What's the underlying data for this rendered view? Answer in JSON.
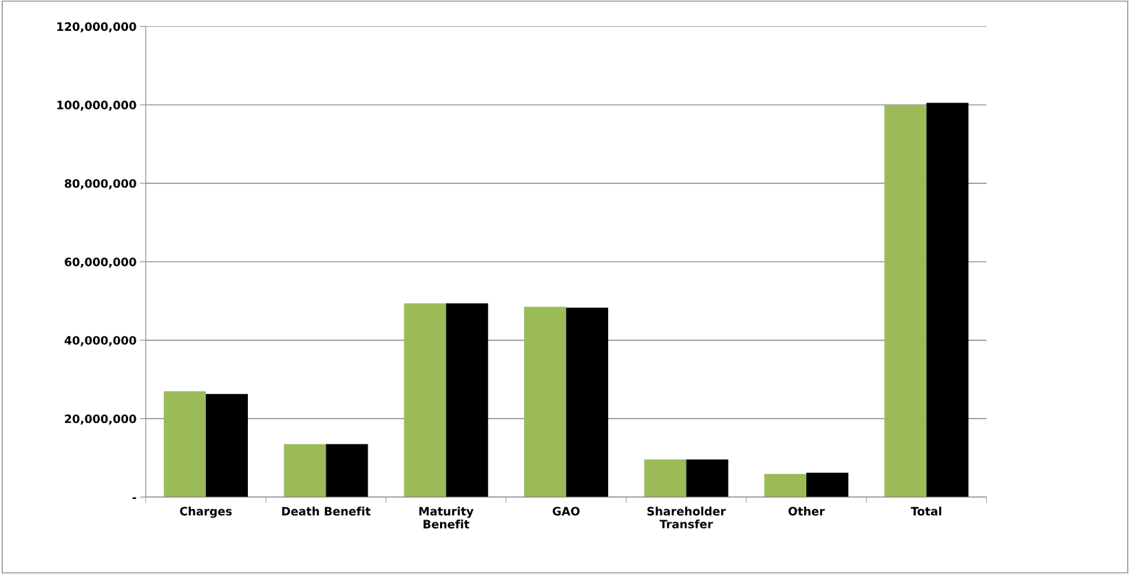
{
  "chart_data": {
    "type": "bar",
    "categories": [
      "Charges",
      "Death Benefit",
      "Maturity\nBenefit",
      "GAO",
      "Shareholder\nTransfer",
      "Other",
      "Total"
    ],
    "series": [
      {
        "color": "#9bbb59",
        "values": [
          27000000,
          13500000,
          49400000,
          48500000,
          9600000,
          5900000,
          100000000
        ]
      },
      {
        "color": "#000000",
        "values": [
          26300000,
          13500000,
          49400000,
          48300000,
          9600000,
          6200000,
          100500000
        ]
      }
    ],
    "ylim": [
      0,
      120000000
    ],
    "yticks": [
      {
        "value": 0,
        "label": "-"
      },
      {
        "value": 20000000,
        "label": "20,000,000"
      },
      {
        "value": 40000000,
        "label": "40,000,000"
      },
      {
        "value": 60000000,
        "label": "60,000,000"
      },
      {
        "value": 80000000,
        "label": "80,000,000"
      },
      {
        "value": 100000000,
        "label": "100,000,000"
      },
      {
        "value": 120000000,
        "label": "120,000,000"
      }
    ],
    "grid": "y"
  }
}
